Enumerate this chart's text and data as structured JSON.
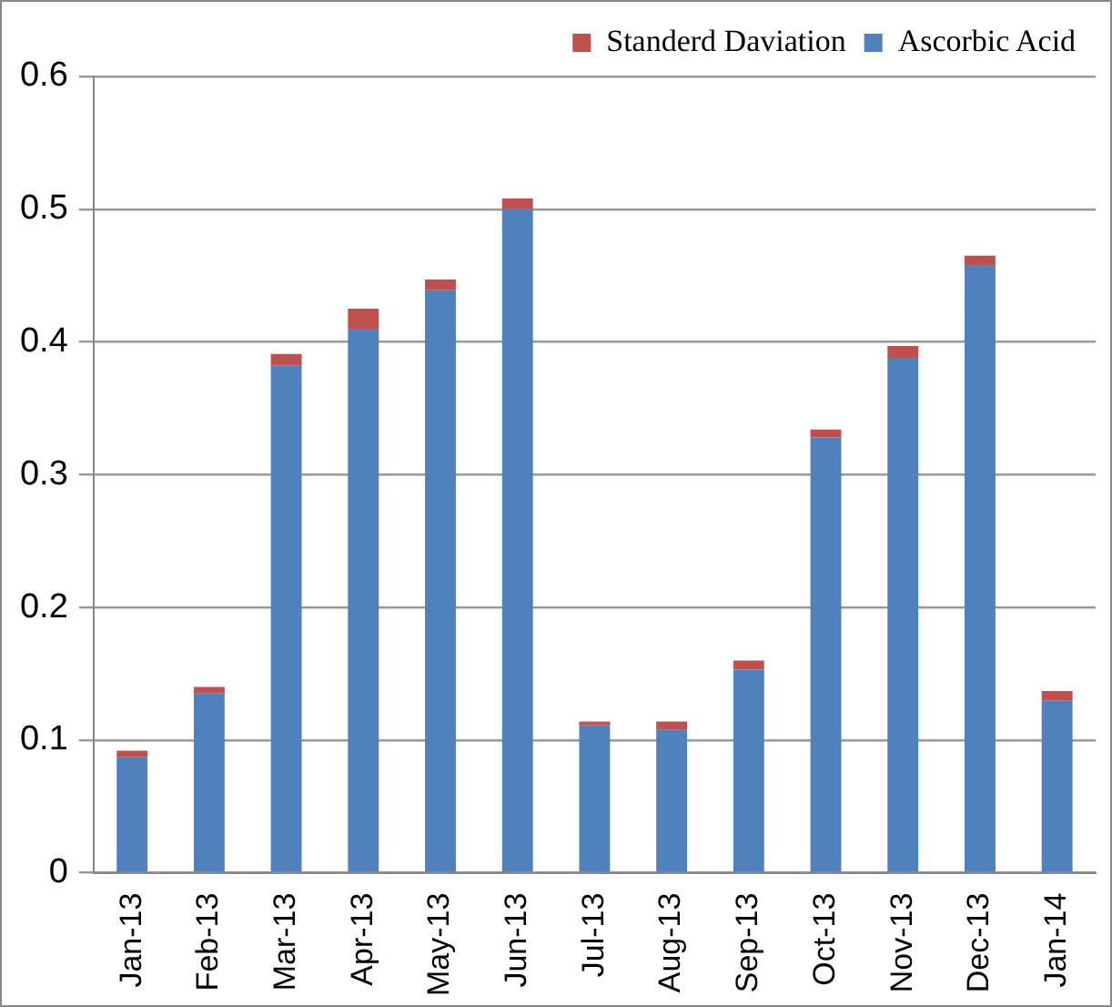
{
  "chart_data": {
    "type": "bar",
    "stacked": true,
    "categories": [
      "Jan-13",
      "Feb-13",
      "Mar-13",
      "Apr-13",
      "May-13",
      "Jun-13",
      "Jul-13",
      "Aug-13",
      "Sep-13",
      "Oct-13",
      "Nov-13",
      "Dec-13",
      "Jan-14"
    ],
    "series": [
      {
        "name": "Ascorbic Acid",
        "color": "#4f81bd",
        "values": [
          0.087,
          0.135,
          0.382,
          0.41,
          0.439,
          0.5,
          0.111,
          0.108,
          0.153,
          0.328,
          0.388,
          0.458,
          0.13
        ]
      },
      {
        "name": "Standerd Daviation",
        "color": "#c0504d",
        "values": [
          0.005,
          0.005,
          0.009,
          0.015,
          0.008,
          0.008,
          0.003,
          0.006,
          0.007,
          0.006,
          0.009,
          0.007,
          0.007
        ]
      }
    ],
    "ylim": [
      0,
      0.6
    ],
    "yticks": [
      0,
      0.1,
      0.2,
      0.3,
      0.4,
      0.5,
      0.6
    ],
    "grid": "y",
    "legend": "top"
  }
}
